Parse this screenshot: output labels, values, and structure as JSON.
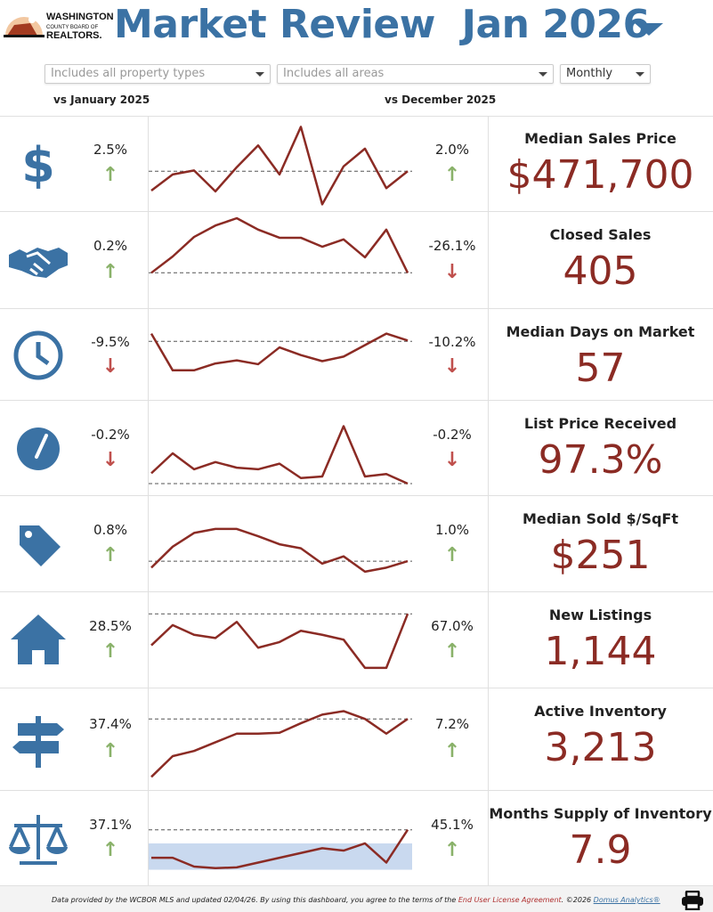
{
  "header": {
    "logo_text": "WASHINGTON COUNTY BOARD OF REALTORS",
    "title": "Market Review",
    "period": "Jan 2026"
  },
  "filters": {
    "property_type": "Includes all property types",
    "area": "Includes all areas",
    "frequency": "Monthly"
  },
  "compare": {
    "year_label": "vs January 2025",
    "month_label": "vs December 2025"
  },
  "colors": {
    "title": "#3b72a4",
    "value": "#8b2b24",
    "line": "#8b2b24",
    "up": "#8ab26a",
    "down": "#c0504d",
    "band": "#c9d9ef"
  },
  "metrics": [
    {
      "label": "Median Sales Price",
      "value": "$471,700",
      "icon": "dollar-icon",
      "yoy": "2.5%",
      "yoy_dir": "up",
      "mom": "2.0%",
      "mom_dir": "up"
    },
    {
      "label": "Closed Sales",
      "value": "405",
      "icon": "handshake-icon",
      "yoy": "0.2%",
      "yoy_dir": "up",
      "mom": "-26.1%",
      "mom_dir": "down"
    },
    {
      "label": "Median Days on Market",
      "value": "57",
      "icon": "clock-icon",
      "yoy": "-9.5%",
      "yoy_dir": "down",
      "mom": "-10.2%",
      "mom_dir": "down"
    },
    {
      "label": "List Price Received",
      "value": "97.3%",
      "icon": "gauge-icon",
      "yoy": "-0.2%",
      "yoy_dir": "down",
      "mom": "-0.2%",
      "mom_dir": "down"
    },
    {
      "label": "Median Sold $/SqFt",
      "value": "$251",
      "icon": "price-tag-icon",
      "yoy": "0.8%",
      "yoy_dir": "up",
      "mom": "1.0%",
      "mom_dir": "up"
    },
    {
      "label": "New Listings",
      "value": "1,144",
      "icon": "house-icon",
      "yoy": "28.5%",
      "yoy_dir": "up",
      "mom": "67.0%",
      "mom_dir": "up"
    },
    {
      "label": "Active Inventory",
      "value": "3,213",
      "icon": "signpost-icon",
      "yoy": "37.4%",
      "yoy_dir": "up",
      "mom": "7.2%",
      "mom_dir": "up"
    },
    {
      "label": "Months Supply of Inventory",
      "value": "7.9",
      "icon": "balance-scale-icon",
      "yoy": "37.1%",
      "yoy_dir": "up",
      "mom": "45.1%",
      "mom_dir": "up"
    }
  ],
  "chart_data": {
    "type": "line",
    "note_units": "relative",
    "series": [
      {
        "values": [
          21,
          41,
          46,
          20,
          50,
          77,
          41,
          100,
          4,
          51,
          73,
          24,
          45
        ],
        "reference": 45
      },
      {
        "values": [
          39,
          59,
          83,
          97,
          106,
          92,
          82,
          82,
          71,
          80,
          58,
          92,
          39
        ],
        "reference": 39
      },
      {
        "values": [
          82,
          34,
          34,
          43,
          47,
          42,
          64,
          54,
          46,
          52,
          67,
          82,
          73
        ],
        "reference": 72
      },
      {
        "values": [
          23,
          48,
          28,
          37,
          30,
          28,
          35,
          17,
          19,
          82,
          19,
          22,
          10
        ],
        "reference": 10
      },
      {
        "values": [
          25,
          51,
          68,
          73,
          73,
          64,
          54,
          49,
          30,
          39,
          20,
          25,
          33
        ],
        "reference": 33
      },
      {
        "values": [
          48,
          73,
          61,
          57,
          77,
          45,
          52,
          66,
          61,
          55,
          20,
          20,
          87
        ],
        "reference": 87
      },
      {
        "values": [
          11,
          35,
          41,
          51,
          61,
          61,
          62,
          73,
          83,
          87,
          78,
          61,
          78
        ],
        "reference": 78
      },
      {
        "values": [
          30,
          30,
          19,
          17,
          18,
          24,
          30,
          36,
          42,
          39,
          48,
          24,
          65
        ],
        "reference": 65,
        "band": [
          15,
          48
        ]
      }
    ]
  },
  "footer": {
    "text": "Data provided by the WCBOR MLS and updated 02/04/26.  By using this dashboard, you agree to the terms of the ",
    "eula": "End User License Agreement",
    "copyright": ".  ©2026 ",
    "domus": "Domus Analytics®"
  }
}
